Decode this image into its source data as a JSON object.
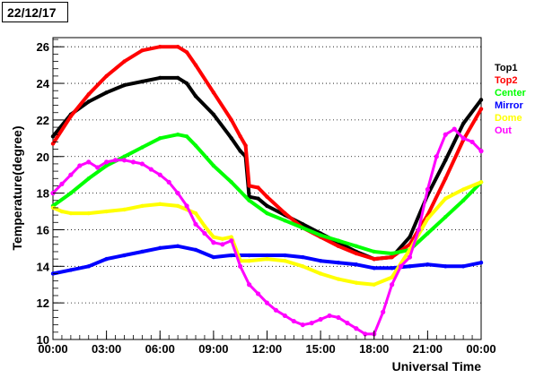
{
  "date_label": "22/12/17",
  "chart_data": {
    "type": "line",
    "title": "",
    "xlabel": "Universal Time",
    "ylabel": "Temperature(degree)",
    "xlim": [
      0,
      24
    ],
    "ylim": [
      10,
      26.5
    ],
    "x_ticks": [
      "00:00",
      "03:00",
      "06:00",
      "09:00",
      "12:00",
      "15:00",
      "18:00",
      "21:00",
      "00:00"
    ],
    "y_ticks": [
      10,
      12,
      14,
      16,
      18,
      20,
      22,
      24,
      26
    ],
    "grid": "y-dotted",
    "legend_position": "right",
    "series": [
      {
        "name": "Top1",
        "color": "#000000",
        "x": [
          0,
          1,
          2,
          3,
          4,
          5,
          6,
          7,
          7.5,
          8,
          9,
          10,
          10.5,
          10.8,
          11,
          11.5,
          12,
          13,
          14,
          15,
          16,
          17,
          18,
          19,
          20,
          21,
          22,
          23,
          24
        ],
        "y": [
          21.1,
          22.3,
          23.0,
          23.5,
          23.9,
          24.1,
          24.3,
          24.3,
          24.0,
          23.3,
          22.3,
          21.0,
          20.3,
          20.0,
          17.8,
          17.7,
          17.3,
          16.8,
          16.3,
          15.8,
          15.3,
          14.8,
          14.4,
          14.5,
          15.6,
          17.9,
          19.8,
          21.8,
          23.1
        ]
      },
      {
        "name": "Top2",
        "color": "#ff0000",
        "x": [
          0,
          1,
          2,
          3,
          4,
          5,
          6,
          7,
          7.5,
          8,
          9,
          10,
          10.5,
          10.8,
          11,
          11.5,
          12,
          13,
          14,
          15,
          16,
          17,
          18,
          19,
          20,
          21,
          22,
          23,
          24
        ],
        "y": [
          20.7,
          22.2,
          23.4,
          24.4,
          25.2,
          25.8,
          26.0,
          26.0,
          25.7,
          25.0,
          23.5,
          22.0,
          21.1,
          20.6,
          18.4,
          18.3,
          17.8,
          16.9,
          16.1,
          15.6,
          15.1,
          14.7,
          14.4,
          14.5,
          15.2,
          16.8,
          18.8,
          20.9,
          22.6
        ]
      },
      {
        "name": "Center",
        "color": "#00ff00",
        "x": [
          0,
          1,
          2,
          3,
          4,
          5,
          6,
          7,
          7.5,
          8,
          9,
          10,
          11,
          12,
          13,
          14,
          15,
          16,
          17,
          18,
          19,
          20,
          21,
          22,
          23,
          24
        ],
        "y": [
          17.3,
          18.0,
          18.8,
          19.5,
          20.0,
          20.5,
          21.0,
          21.2,
          21.1,
          20.6,
          19.5,
          18.6,
          17.6,
          16.9,
          16.5,
          16.1,
          15.7,
          15.4,
          15.1,
          14.8,
          14.7,
          14.9,
          15.8,
          16.7,
          17.6,
          18.6
        ]
      },
      {
        "name": "Mirror",
        "color": "#0000ff",
        "x": [
          0,
          1,
          2,
          3,
          4,
          5,
          6,
          7,
          8,
          9,
          10,
          11,
          12,
          13,
          14,
          15,
          16,
          17,
          18,
          19,
          20,
          21,
          22,
          23,
          24
        ],
        "y": [
          13.6,
          13.8,
          14.0,
          14.4,
          14.6,
          14.8,
          15.0,
          15.1,
          14.9,
          14.5,
          14.6,
          14.6,
          14.6,
          14.6,
          14.5,
          14.3,
          14.2,
          14.1,
          13.9,
          13.9,
          14.0,
          14.1,
          14.0,
          14.0,
          14.2
        ]
      },
      {
        "name": "Dome",
        "color": "#ffff00",
        "x": [
          0,
          0.5,
          1,
          2,
          3,
          4,
          5,
          6,
          7,
          8,
          8.5,
          9,
          9.5,
          10,
          10.5,
          11,
          12,
          13,
          14,
          15,
          16,
          17,
          18,
          19,
          20,
          21,
          22,
          23,
          24
        ],
        "y": [
          17.2,
          17.0,
          16.9,
          16.9,
          17.0,
          17.1,
          17.3,
          17.4,
          17.3,
          16.9,
          16.2,
          15.6,
          15.5,
          15.6,
          14.3,
          14.3,
          14.4,
          14.3,
          14.0,
          13.6,
          13.3,
          13.1,
          13.0,
          13.4,
          14.9,
          16.6,
          17.7,
          18.2,
          18.6
        ]
      },
      {
        "name": "Out",
        "color": "#ff00ff",
        "x": [
          0,
          0.5,
          1,
          1.5,
          2,
          2.5,
          3,
          3.5,
          4,
          4.5,
          5,
          5.5,
          6,
          6.5,
          7,
          7.5,
          8,
          8.5,
          9,
          9.5,
          10,
          10.5,
          11,
          11.5,
          12,
          12.5,
          13,
          13.5,
          14,
          14.5,
          15,
          15.5,
          16,
          16.5,
          17,
          17.5,
          18,
          18.5,
          19,
          19.5,
          20,
          20.5,
          21,
          21.5,
          22,
          22.5,
          23,
          23.5,
          24
        ],
        "y": [
          18.0,
          18.5,
          19.0,
          19.5,
          19.7,
          19.4,
          19.7,
          19.8,
          19.8,
          19.7,
          19.6,
          19.3,
          19.0,
          18.6,
          18.0,
          17.3,
          16.3,
          15.8,
          15.3,
          15.2,
          15.4,
          14.0,
          13.0,
          12.5,
          12.0,
          11.6,
          11.3,
          11.0,
          10.8,
          10.9,
          11.1,
          11.3,
          11.2,
          10.9,
          10.6,
          10.3,
          10.3,
          11.5,
          13.0,
          14.0,
          14.5,
          16.0,
          18.2,
          20.0,
          21.2,
          21.5,
          21.0,
          20.8,
          20.3
        ]
      }
    ]
  }
}
